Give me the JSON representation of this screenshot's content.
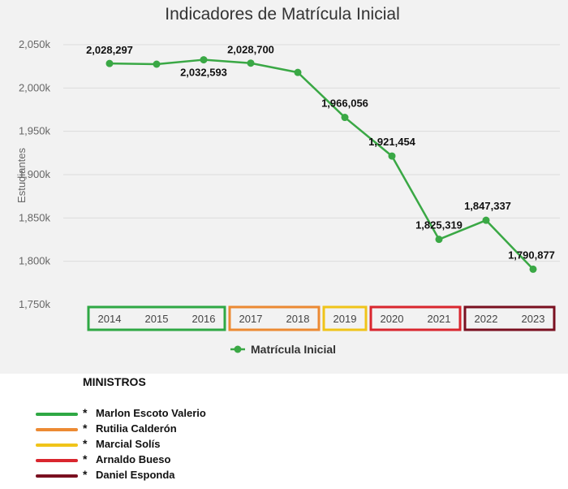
{
  "chart_data": {
    "type": "line",
    "title": "Indicadores de Matrícula Inicial",
    "ylabel": "Estudiantes",
    "ylim": [
      1750000,
      2050000
    ],
    "yticks": [
      {
        "value": 2050000,
        "label": "2,050k"
      },
      {
        "value": 2000000,
        "label": "2,000k"
      },
      {
        "value": 1950000,
        "label": "1,950k"
      },
      {
        "value": 1900000,
        "label": "1,900k"
      },
      {
        "value": 1850000,
        "label": "1,850k"
      },
      {
        "value": 1800000,
        "label": "1,800k"
      },
      {
        "value": 1750000,
        "label": "1,750k"
      }
    ],
    "grid": true,
    "legend_position": "bottom",
    "categories": [
      "2014",
      "2015",
      "2016",
      "2017",
      "2018",
      "2019",
      "2020",
      "2021",
      "2022",
      "2023"
    ],
    "series": [
      {
        "name": "Matrícula Inicial",
        "color": "#3aa845",
        "values": [
          2028297,
          2027500,
          2032593,
          2028700,
          2018000,
          1966056,
          1921454,
          1825319,
          1847337,
          1790877
        ],
        "data_labels": [
          "2,028,297",
          "",
          "2,032,593",
          "2,028,700",
          "",
          "1,966,056",
          "1,921,454",
          "1,825,319",
          "1,847,337",
          "1,790,877"
        ]
      }
    ],
    "year_groups": [
      {
        "color": "#2fa844",
        "years": [
          0,
          1,
          2
        ]
      },
      {
        "color": "#ec8a33",
        "years": [
          3,
          4
        ]
      },
      {
        "color": "#f0c419",
        "years": [
          5
        ]
      },
      {
        "color": "#d9262e",
        "years": [
          6,
          7
        ]
      },
      {
        "color": "#7a1020",
        "years": [
          8,
          9
        ]
      }
    ]
  },
  "ministers": {
    "title": "MINISTROS",
    "items": [
      {
        "star": "*",
        "name": "Marlon Escoto Valerio",
        "color": "#2fa844"
      },
      {
        "star": "*",
        "name": "Rutilia Calderón",
        "color": "#ec8a33"
      },
      {
        "star": "*",
        "name": "Marcial Solís",
        "color": "#f0c419"
      },
      {
        "star": "*",
        "name": "Arnaldo Bueso",
        "color": "#d9262e"
      },
      {
        "star": "*",
        "name": "Daniel Esponda",
        "color": "#7a1020"
      }
    ]
  }
}
